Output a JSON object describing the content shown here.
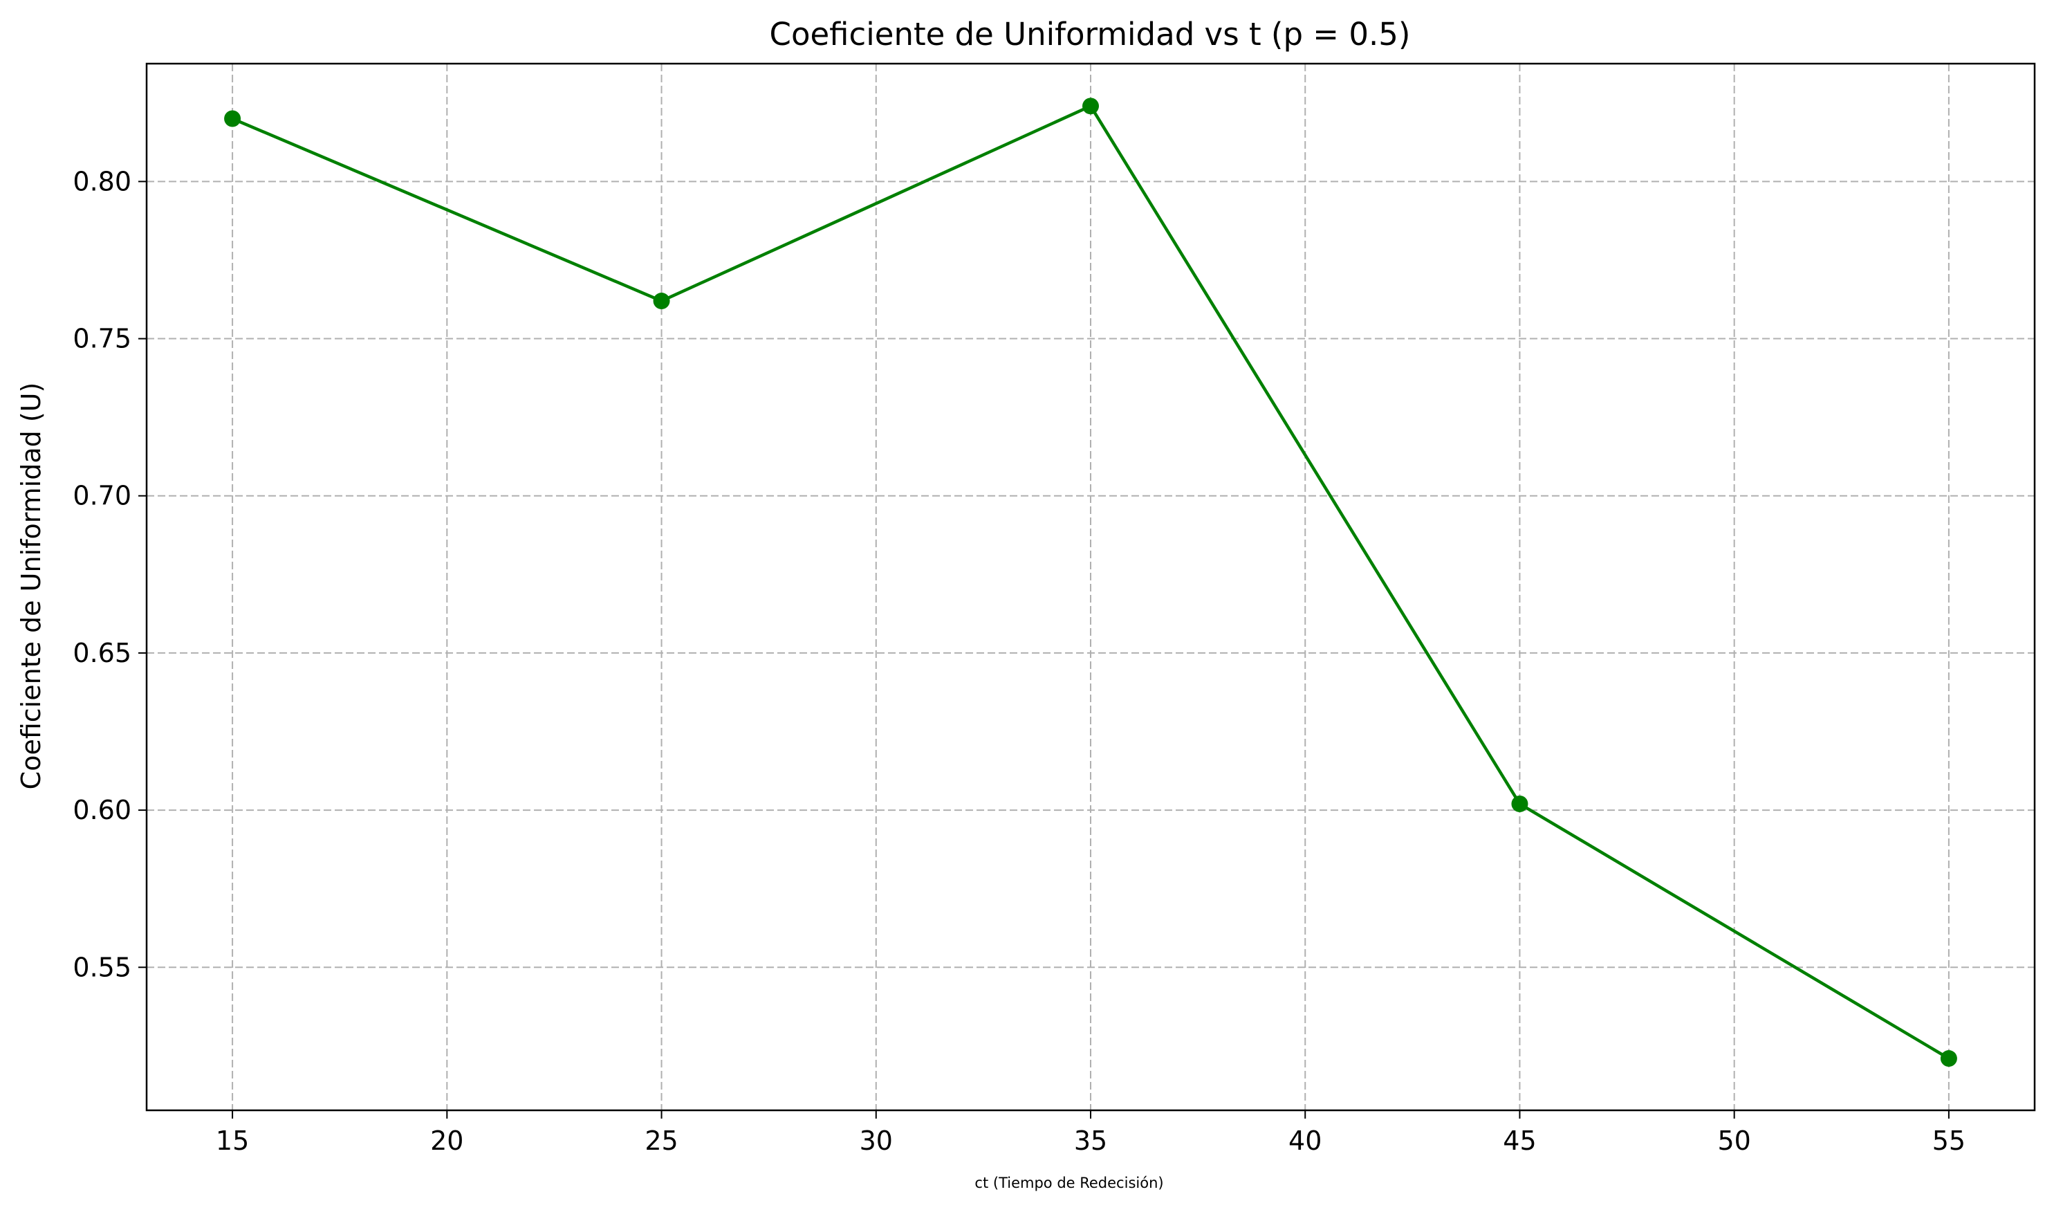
{
  "chart_data": {
    "type": "line",
    "title": "Coeficiente de Uniformidad vs t (p = 0.5)",
    "xlabel": "ct (Tiempo de Redecisión)",
    "ylabel": "Coeficiente de Uniformidad (U)",
    "x": [
      15,
      25,
      35,
      45,
      55
    ],
    "series": [
      {
        "values": [
          0.82,
          0.762,
          0.824,
          0.602,
          0.521
        ],
        "color": "#008000",
        "marker": "circle"
      }
    ],
    "xlim": [
      13,
      57
    ],
    "ylim": [
      0.5045,
      0.8375
    ],
    "x_ticks": [
      15,
      20,
      25,
      30,
      35,
      40,
      45,
      50,
      55
    ],
    "x_tick_labels": [
      "15",
      "20",
      "25",
      "30",
      "35",
      "40",
      "45",
      "50",
      "55"
    ],
    "y_ticks": [
      0.55,
      0.6,
      0.65,
      0.7,
      0.75,
      0.8
    ],
    "y_tick_labels": [
      "0.55",
      "0.60",
      "0.65",
      "0.70",
      "0.75",
      "0.80"
    ],
    "grid": true,
    "grid_style": "dashed",
    "legend": "none"
  }
}
